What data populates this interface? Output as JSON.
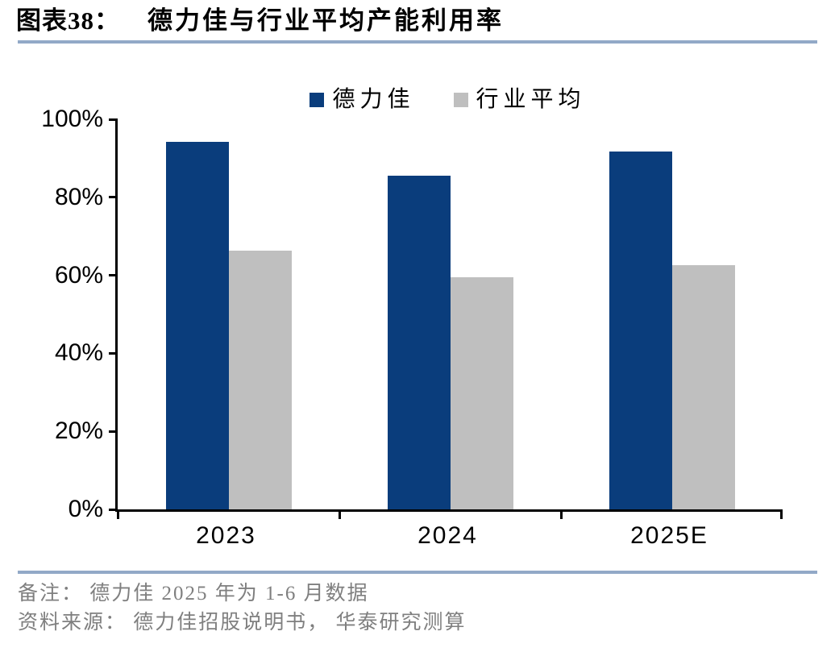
{
  "figure": {
    "label": "图表38：",
    "title": "德力佳与行业平均产能利用率"
  },
  "chart_data": {
    "type": "bar",
    "title": "德力佳与行业平均产能利用率",
    "categories": [
      "2023",
      "2024",
      "2025E"
    ],
    "series": [
      {
        "name": "德力佳",
        "color": "#0A3D7C",
        "values": [
          94.2,
          85.5,
          91.8
        ]
      },
      {
        "name": "行业平均",
        "color": "#BFBFBF",
        "values": [
          66.3,
          59.5,
          62.6
        ]
      }
    ],
    "xlabel": "",
    "ylabel": "",
    "ylim": [
      0,
      100
    ],
    "y_tick_step": 20,
    "y_ticks": [
      "100%",
      "80%",
      "60%",
      "40%",
      "20%",
      "0%"
    ],
    "grid": false,
    "legend_position": "top-center",
    "unit": "percent"
  },
  "notes": {
    "note": "备注： 德力佳 2025 年为 1-6 月数据",
    "source": "资料来源： 德力佳招股说明书， 华泰研究测算"
  },
  "colors": {
    "series_navy": "#0A3D7C",
    "series_gray": "#BFBFBF",
    "rule_blue": "#92A9C7",
    "note_gray": "#7F7F7F",
    "axis_black": "#000000"
  }
}
